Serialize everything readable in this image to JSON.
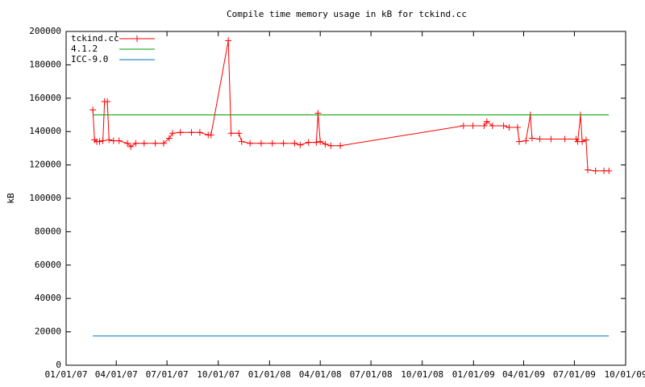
{
  "chart_data": {
    "type": "line",
    "title": "Compile time memory usage in kB for tckind.cc",
    "ylabel": "kB",
    "xlim": [
      "2007-01-01",
      "2009-10-01"
    ],
    "xticks": [
      {
        "value": "2007-01-01",
        "label": "01/01/07"
      },
      {
        "value": "2007-04-01",
        "label": "04/01/07"
      },
      {
        "value": "2007-07-01",
        "label": "07/01/07"
      },
      {
        "value": "2007-10-01",
        "label": "10/01/07"
      },
      {
        "value": "2008-01-01",
        "label": "01/01/08"
      },
      {
        "value": "2008-04-01",
        "label": "04/01/08"
      },
      {
        "value": "2008-07-01",
        "label": "07/01/08"
      },
      {
        "value": "2008-10-01",
        "label": "10/01/08"
      },
      {
        "value": "2009-01-01",
        "label": "01/01/09"
      },
      {
        "value": "2009-04-01",
        "label": "04/01/09"
      },
      {
        "value": "2009-07-01",
        "label": "07/01/09"
      },
      {
        "value": "2009-10-01",
        "label": "10/01/09"
      }
    ],
    "ylim": [
      0,
      200000
    ],
    "yticks": [
      0,
      20000,
      40000,
      60000,
      80000,
      100000,
      120000,
      140000,
      160000,
      180000,
      200000
    ],
    "legend": "top-left",
    "series": [
      {
        "name": "tckind.cc",
        "color": "#ff0000",
        "markers": true,
        "x": [
          "2007-02-18",
          "2007-02-21",
          "2007-02-25",
          "2007-03-02",
          "2007-03-08",
          "2007-03-11",
          "2007-03-16",
          "2007-03-19",
          "2007-03-27",
          "2007-04-06",
          "2007-04-21",
          "2007-04-27",
          "2007-05-06",
          "2007-05-21",
          "2007-06-10",
          "2007-06-25",
          "2007-07-05",
          "2007-07-11",
          "2007-07-25",
          "2007-08-14",
          "2007-08-29",
          "2007-09-13",
          "2007-09-18",
          "2007-10-19",
          "2007-10-24",
          "2007-11-07",
          "2007-11-12",
          "2007-11-27",
          "2007-12-17",
          "2008-01-06",
          "2008-01-26",
          "2008-02-15",
          "2008-02-25",
          "2008-03-11",
          "2008-03-25",
          "2008-03-28",
          "2008-04-01",
          "2008-04-10",
          "2008-04-20",
          "2008-05-07",
          "2008-12-14",
          "2008-12-31",
          "2009-01-20",
          "2009-01-25",
          "2009-02-04",
          "2009-02-24",
          "2009-03-06",
          "2009-03-21",
          "2009-03-24",
          "2009-04-05",
          "2009-04-13",
          "2009-04-16",
          "2009-04-30",
          "2009-05-20",
          "2009-06-14",
          "2009-07-04",
          "2009-07-07",
          "2009-07-12",
          "2009-07-15",
          "2009-07-22",
          "2009-07-25",
          "2009-08-08",
          "2009-08-23",
          "2009-09-01"
        ],
        "values": [
          153000,
          135000,
          134000,
          134000,
          134500,
          158000,
          158000,
          135000,
          134500,
          134500,
          133000,
          131000,
          133000,
          133000,
          133000,
          133000,
          136000,
          139000,
          139500,
          139500,
          139500,
          138000,
          138000,
          194500,
          139000,
          139000,
          134000,
          133000,
          133000,
          133000,
          133000,
          133000,
          132000,
          133500,
          133500,
          151000,
          134000,
          132500,
          131500,
          131500,
          143500,
          143500,
          143500,
          146000,
          143500,
          143500,
          142500,
          142500,
          134000,
          134500,
          150000,
          136000,
          135500,
          135500,
          135500,
          135500,
          134000,
          150000,
          134000,
          135000,
          117000,
          116500,
          116500,
          116500
        ]
      },
      {
        "name": "4.1.2",
        "color": "#00a000",
        "markers": false,
        "x": [
          "2007-02-18",
          "2009-09-01"
        ],
        "values": [
          150000,
          150000
        ]
      },
      {
        "name": "ICC-9.0",
        "color": "#0070c0",
        "markers": false,
        "x": [
          "2007-02-18",
          "2009-09-01"
        ],
        "values": [
          17500,
          17500
        ]
      }
    ]
  }
}
